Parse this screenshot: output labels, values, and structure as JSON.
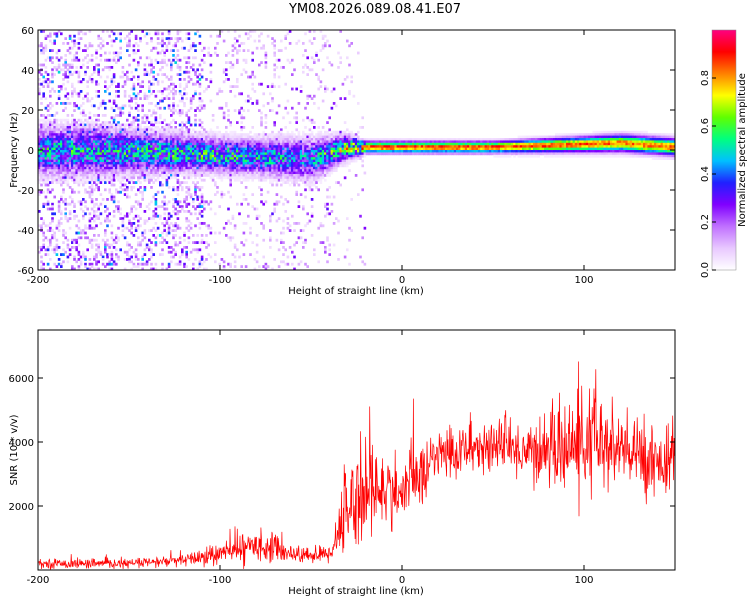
{
  "figure": {
    "title": "YM08.2026.089.08.41.E07"
  },
  "chart_data": [
    {
      "type": "heatmap",
      "xlabel": "Height of straight line (km)",
      "ylabel": "Frequency (Hz)",
      "xlim": [
        -200,
        150
      ],
      "ylim": [
        -60,
        60
      ],
      "xticks": [
        -200,
        -100,
        0,
        100
      ],
      "yticks": [
        -60,
        -40,
        -20,
        0,
        20,
        40,
        60
      ],
      "colorbar": {
        "label": "Normalized spectral amplitude",
        "range": [
          0,
          1
        ],
        "ticks": [
          0.0,
          0.2,
          0.4,
          0.6,
          0.8
        ],
        "colors": [
          "#ffffff",
          "#e8c8ff",
          "#c070ff",
          "#8000ff",
          "#2020ff",
          "#00c0ff",
          "#00ff80",
          "#60ff00",
          "#ffff00",
          "#ff8000",
          "#ff0000",
          "#ff0080"
        ]
      },
      "description_points": [
        {
          "x": -170,
          "y_center": 0,
          "spread": 8,
          "amp": 0.55
        },
        {
          "x": -120,
          "y_center": -1,
          "spread": 6,
          "amp": 0.6
        },
        {
          "x": -80,
          "y_center": -3,
          "spread": 6,
          "amp": 0.55
        },
        {
          "x": -50,
          "y_center": -4,
          "spread": 7,
          "amp": 0.5
        },
        {
          "x": -30,
          "y_center": 2,
          "spread": 4,
          "amp": 0.75
        },
        {
          "x": -20,
          "y_center": 2,
          "spread": 2,
          "amp": 0.95
        },
        {
          "x": 50,
          "y_center": 2,
          "spread": 2,
          "amp": 0.95
        },
        {
          "x": 120,
          "y_center": 4,
          "spread": 3,
          "amp": 0.9
        },
        {
          "x": 150,
          "y_center": 2,
          "spread": 3,
          "amp": 0.9
        }
      ]
    },
    {
      "type": "line",
      "xlabel": "Height of straight line (km)",
      "ylabel": "SNR (10 * v/v)",
      "xlim": [
        -200,
        150
      ],
      "ylim": [
        0,
        7500
      ],
      "xticks": [
        -200,
        -100,
        0,
        100
      ],
      "yticks": [
        2000,
        4000,
        6000
      ],
      "color": "#ff0000",
      "series": [
        {
          "name": "SNR",
          "envelope": [
            {
              "x": -200,
              "mean": 200,
              "noise": 150
            },
            {
              "x": -150,
              "mean": 200,
              "noise": 150
            },
            {
              "x": -120,
              "mean": 300,
              "noise": 200
            },
            {
              "x": -100,
              "mean": 500,
              "noise": 350
            },
            {
              "x": -80,
              "mean": 800,
              "noise": 500
            },
            {
              "x": -70,
              "mean": 650,
              "noise": 400
            },
            {
              "x": -55,
              "mean": 450,
              "noise": 250
            },
            {
              "x": -40,
              "mean": 500,
              "noise": 300
            },
            {
              "x": -35,
              "mean": 1200,
              "noise": 900
            },
            {
              "x": -30,
              "mean": 2000,
              "noise": 1400
            },
            {
              "x": -20,
              "mean": 2500,
              "noise": 1800
            },
            {
              "x": -10,
              "mean": 2500,
              "noise": 1200
            },
            {
              "x": 0,
              "mean": 2400,
              "noise": 900
            },
            {
              "x": 20,
              "mean": 3600,
              "noise": 900
            },
            {
              "x": 50,
              "mean": 3900,
              "noise": 800
            },
            {
              "x": 70,
              "mean": 3700,
              "noise": 900
            },
            {
              "x": 90,
              "mean": 3800,
              "noise": 1400
            },
            {
              "x": 105,
              "mean": 4000,
              "noise": 1800
            },
            {
              "x": 120,
              "mean": 3700,
              "noise": 1300
            },
            {
              "x": 150,
              "mean": 3300,
              "noise": 1000
            }
          ]
        }
      ]
    }
  ]
}
